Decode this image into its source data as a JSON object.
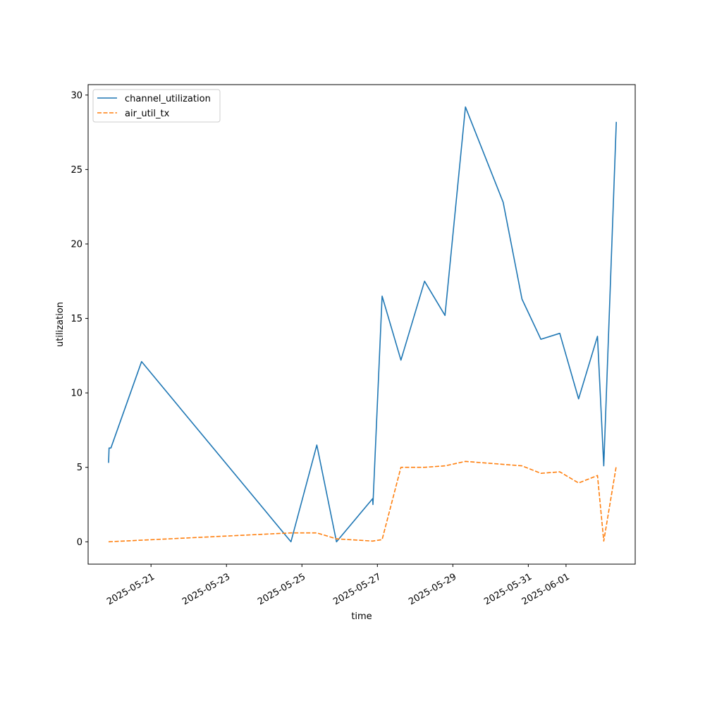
{
  "chart_data": {
    "type": "line",
    "title": "",
    "xlabel": "time",
    "ylabel": "utilization",
    "x_type": "date",
    "xlim": [
      "2025-05-19T08:00",
      "2025-06-02T20:00"
    ],
    "ylim": [
      -1.5,
      30.7
    ],
    "x_ticks": [
      "2025-05-21",
      "2025-05-23",
      "2025-05-25",
      "2025-05-27",
      "2025-05-29",
      "2025-05-31",
      "2025-06-01"
    ],
    "y_ticks": [
      0,
      5,
      10,
      15,
      20,
      25,
      30
    ],
    "grid": false,
    "legend_position": "upper left",
    "series": [
      {
        "name": "channel_utilization",
        "color": "#1f77b4",
        "dash": "solid",
        "points": [
          {
            "x": "2025-05-19T21:00",
            "y": 5.3
          },
          {
            "x": "2025-05-19T21:20",
            "y": 6.3
          },
          {
            "x": "2025-05-19T22:30",
            "y": 6.3
          },
          {
            "x": "2025-05-20T18:00",
            "y": 12.1
          },
          {
            "x": "2025-05-24T17:00",
            "y": 0.0
          },
          {
            "x": "2025-05-25T09:30",
            "y": 6.5
          },
          {
            "x": "2025-05-25T22:00",
            "y": 0.0
          },
          {
            "x": "2025-05-26T21:00",
            "y": 2.9
          },
          {
            "x": "2025-05-26T21:10",
            "y": 2.5
          },
          {
            "x": "2025-05-27T03:00",
            "y": 16.5
          },
          {
            "x": "2025-05-27T15:00",
            "y": 12.2
          },
          {
            "x": "2025-05-28T06:00",
            "y": 17.5
          },
          {
            "x": "2025-05-28T19:00",
            "y": 15.2
          },
          {
            "x": "2025-05-29T08:00",
            "y": 29.2
          },
          {
            "x": "2025-05-30T08:00",
            "y": 22.8
          },
          {
            "x": "2025-05-30T20:00",
            "y": 16.3
          },
          {
            "x": "2025-05-31T08:00",
            "y": 13.6
          },
          {
            "x": "2025-05-31T20:00",
            "y": 14.0
          },
          {
            "x": "2025-06-01T08:00",
            "y": 9.6
          },
          {
            "x": "2025-06-01T20:00",
            "y": 13.8
          },
          {
            "x": "2025-06-02T00:00",
            "y": 5.1
          },
          {
            "x": "2025-06-02T08:00",
            "y": 28.2
          }
        ]
      },
      {
        "name": "air_util_tx",
        "color": "#ff7f0e",
        "dash": "dashed",
        "points": [
          {
            "x": "2025-05-19T21:00",
            "y": 0.0
          },
          {
            "x": "2025-05-24T17:00",
            "y": 0.6
          },
          {
            "x": "2025-05-25T09:30",
            "y": 0.6
          },
          {
            "x": "2025-05-25T22:00",
            "y": 0.2
          },
          {
            "x": "2025-05-26T21:00",
            "y": 0.05
          },
          {
            "x": "2025-05-27T03:00",
            "y": 0.15
          },
          {
            "x": "2025-05-27T15:00",
            "y": 5.0
          },
          {
            "x": "2025-05-28T06:00",
            "y": 5.0
          },
          {
            "x": "2025-05-28T19:00",
            "y": 5.1
          },
          {
            "x": "2025-05-29T08:00",
            "y": 5.4
          },
          {
            "x": "2025-05-30T20:00",
            "y": 5.1
          },
          {
            "x": "2025-05-31T08:00",
            "y": 4.6
          },
          {
            "x": "2025-05-31T20:00",
            "y": 4.7
          },
          {
            "x": "2025-06-01T08:00",
            "y": 3.95
          },
          {
            "x": "2025-06-01T20:00",
            "y": 4.45
          },
          {
            "x": "2025-06-02T00:00",
            "y": 0.05
          },
          {
            "x": "2025-06-02T08:00",
            "y": 5.1
          }
        ]
      }
    ]
  }
}
